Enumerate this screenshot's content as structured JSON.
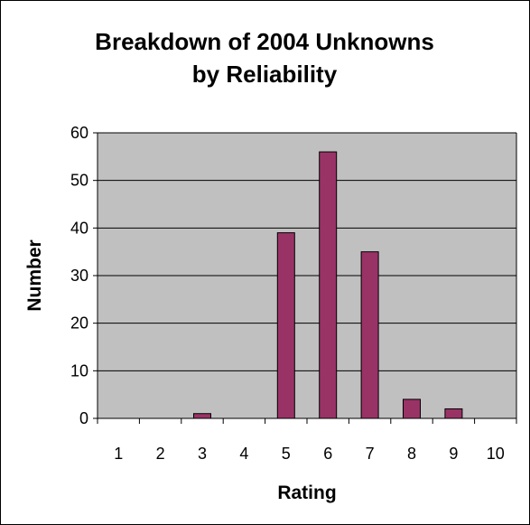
{
  "chart_data": {
    "type": "bar",
    "title_lines": [
      "Breakdown of 2004 Unknowns",
      "by Reliability"
    ],
    "xlabel": "Rating",
    "ylabel": "Number",
    "categories": [
      "1",
      "2",
      "3",
      "4",
      "5",
      "6",
      "7",
      "8",
      "9",
      "10"
    ],
    "values": [
      0,
      0,
      1,
      0,
      39,
      56,
      35,
      4,
      2,
      0
    ],
    "ylim": [
      0,
      60
    ],
    "yticks": [
      0,
      10,
      20,
      30,
      40,
      50,
      60
    ],
    "grid": true,
    "legend": "none",
    "colors": {
      "bar": "#993366",
      "plot_background": "#c0c0c0",
      "gridline": "#000000"
    }
  }
}
